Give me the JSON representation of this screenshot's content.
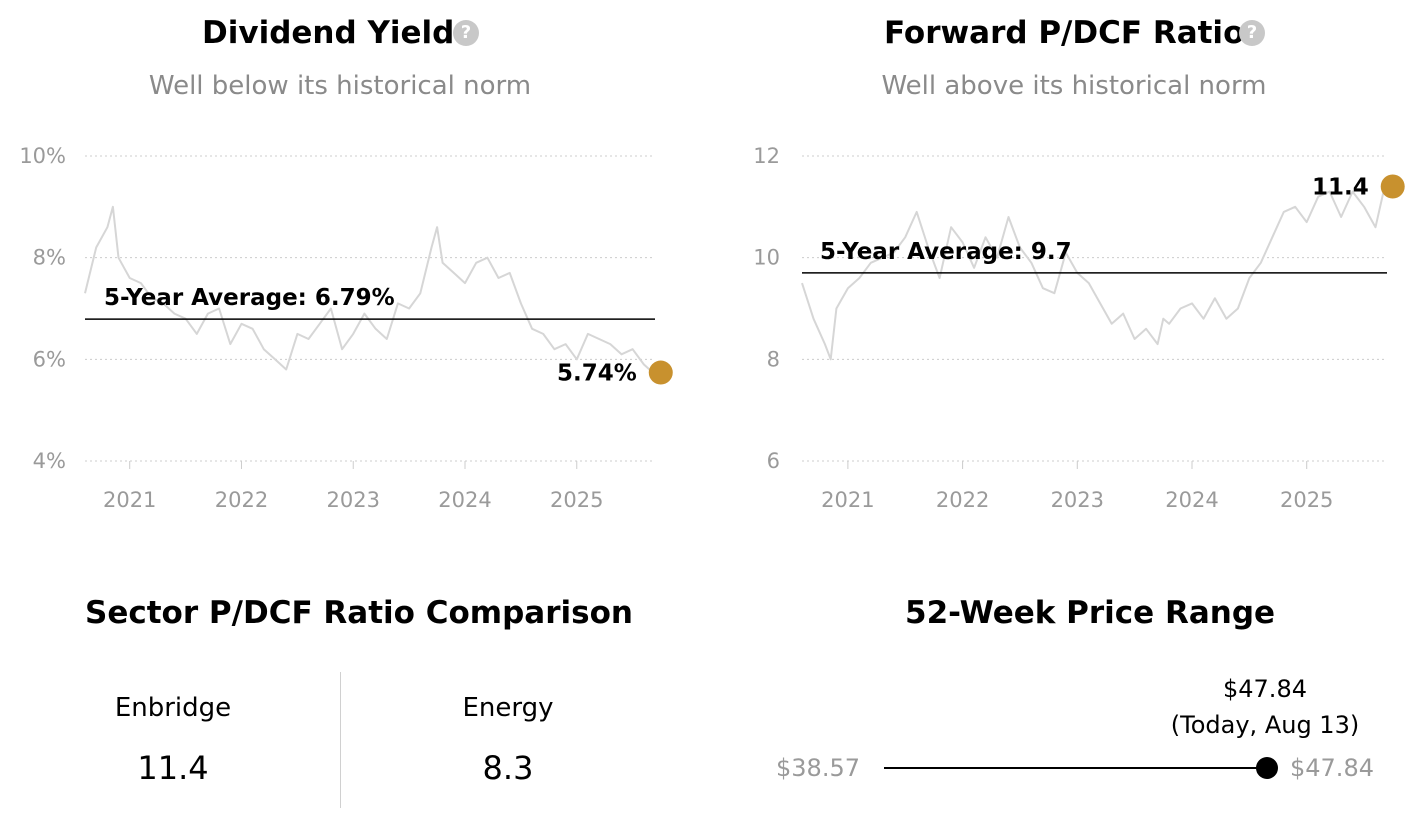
{
  "charts_panel": {
    "dividend": {
      "title": "Dividend Yield",
      "subtitle": "Well below its historical norm",
      "avg_label": "5-Year Average: 6.79%",
      "current_label": "5.74%"
    },
    "pdcf": {
      "title": "Forward P/DCF Ratio",
      "subtitle": "Well above its historical norm",
      "avg_label": "5-Year Average: 9.7",
      "current_label": "11.4"
    },
    "help_glyph": "?"
  },
  "sector": {
    "title": "Sector P/DCF Ratio Comparison",
    "items": [
      {
        "label": "Enbridge",
        "value": "11.4"
      },
      {
        "label": "Energy",
        "value": "8.3"
      }
    ]
  },
  "price_range": {
    "title": "52-Week Price Range",
    "low": "$38.57",
    "high": "$47.84",
    "current_value": "$47.84",
    "current_note": "(Today, Aug 13)",
    "current_fraction": 1.0
  },
  "colors": {
    "accent": "#c8912e",
    "line": "#d6d6d6",
    "grid": "#cccccc",
    "axis_text": "#9a9a9a"
  },
  "chart_data": [
    {
      "type": "line",
      "title": "Dividend Yield",
      "subtitle": "Well below its historical norm",
      "x_ticks": [
        "2021",
        "2022",
        "2023",
        "2024",
        "2025"
      ],
      "y_ticks": [
        "10%",
        "8%",
        "6%",
        "4%"
      ],
      "ylim": [
        4,
        10
      ],
      "xlim": [
        2020.6,
        2025.7
      ],
      "grid": true,
      "average": 6.79,
      "average_label": "5-Year Average: 6.79%",
      "current": 5.74,
      "current_label": "5.74%",
      "series": [
        {
          "x": [
            2020.6,
            2020.7,
            2020.8,
            2020.85,
            2020.9,
            2021.0,
            2021.1,
            2021.2,
            2021.3,
            2021.4,
            2021.5,
            2021.6,
            2021.7,
            2021.8,
            2021.9,
            2022.0,
            2022.1,
            2022.2,
            2022.3,
            2022.4,
            2022.5,
            2022.6,
            2022.7,
            2022.8,
            2022.9,
            2023.0,
            2023.1,
            2023.2,
            2023.3,
            2023.4,
            2023.5,
            2023.6,
            2023.7,
            2023.75,
            2023.8,
            2023.9,
            2024.0,
            2024.1,
            2024.2,
            2024.3,
            2024.4,
            2024.5,
            2024.6,
            2024.7,
            2024.8,
            2024.9,
            2025.0,
            2025.1,
            2025.2,
            2025.3,
            2025.4,
            2025.5,
            2025.6,
            2025.68
          ],
          "values": [
            7.3,
            8.2,
            8.6,
            9.0,
            8.0,
            7.6,
            7.5,
            7.2,
            7.1,
            6.9,
            6.8,
            6.5,
            6.9,
            7.0,
            6.3,
            6.7,
            6.6,
            6.2,
            6.0,
            5.8,
            6.5,
            6.4,
            6.7,
            7.0,
            6.2,
            6.5,
            6.9,
            6.6,
            6.4,
            7.1,
            7.0,
            7.3,
            8.2,
            8.6,
            7.9,
            7.7,
            7.5,
            7.9,
            8.0,
            7.6,
            7.7,
            7.1,
            6.6,
            6.5,
            6.2,
            6.3,
            6.0,
            6.5,
            6.4,
            6.3,
            6.1,
            6.2,
            5.9,
            5.74
          ]
        }
      ]
    },
    {
      "type": "line",
      "title": "Forward P/DCF Ratio",
      "subtitle": "Well above its historical norm",
      "x_ticks": [
        "2021",
        "2022",
        "2023",
        "2024",
        "2025"
      ],
      "y_ticks": [
        "12",
        "10",
        "8",
        "6"
      ],
      "ylim": [
        6,
        12
      ],
      "xlim": [
        2020.6,
        2025.7
      ],
      "grid": true,
      "average": 9.7,
      "average_label": "5-Year Average: 9.7",
      "current": 11.4,
      "current_label": "11.4",
      "series": [
        {
          "x": [
            2020.6,
            2020.7,
            2020.8,
            2020.85,
            2020.9,
            2021.0,
            2021.1,
            2021.2,
            2021.3,
            2021.4,
            2021.5,
            2021.6,
            2021.7,
            2021.8,
            2021.9,
            2022.0,
            2022.1,
            2022.2,
            2022.3,
            2022.4,
            2022.5,
            2022.6,
            2022.7,
            2022.8,
            2022.9,
            2023.0,
            2023.1,
            2023.2,
            2023.3,
            2023.4,
            2023.5,
            2023.6,
            2023.7,
            2023.75,
            2023.8,
            2023.9,
            2024.0,
            2024.1,
            2024.2,
            2024.3,
            2024.4,
            2024.5,
            2024.6,
            2024.7,
            2024.8,
            2024.9,
            2025.0,
            2025.1,
            2025.2,
            2025.3,
            2025.4,
            2025.5,
            2025.6,
            2025.68
          ],
          "values": [
            9.5,
            8.8,
            8.3,
            8.0,
            9.0,
            9.4,
            9.6,
            9.9,
            10.0,
            10.1,
            10.4,
            10.9,
            10.2,
            9.6,
            10.6,
            10.3,
            9.8,
            10.4,
            10.0,
            10.8,
            10.2,
            9.9,
            9.4,
            9.3,
            10.1,
            9.7,
            9.5,
            9.1,
            8.7,
            8.9,
            8.4,
            8.6,
            8.3,
            8.8,
            8.7,
            9.0,
            9.1,
            8.8,
            9.2,
            8.8,
            9.0,
            9.6,
            9.9,
            10.4,
            10.9,
            11.0,
            10.7,
            11.2,
            11.3,
            10.8,
            11.3,
            11.0,
            10.6,
            11.4
          ]
        }
      ]
    }
  ]
}
